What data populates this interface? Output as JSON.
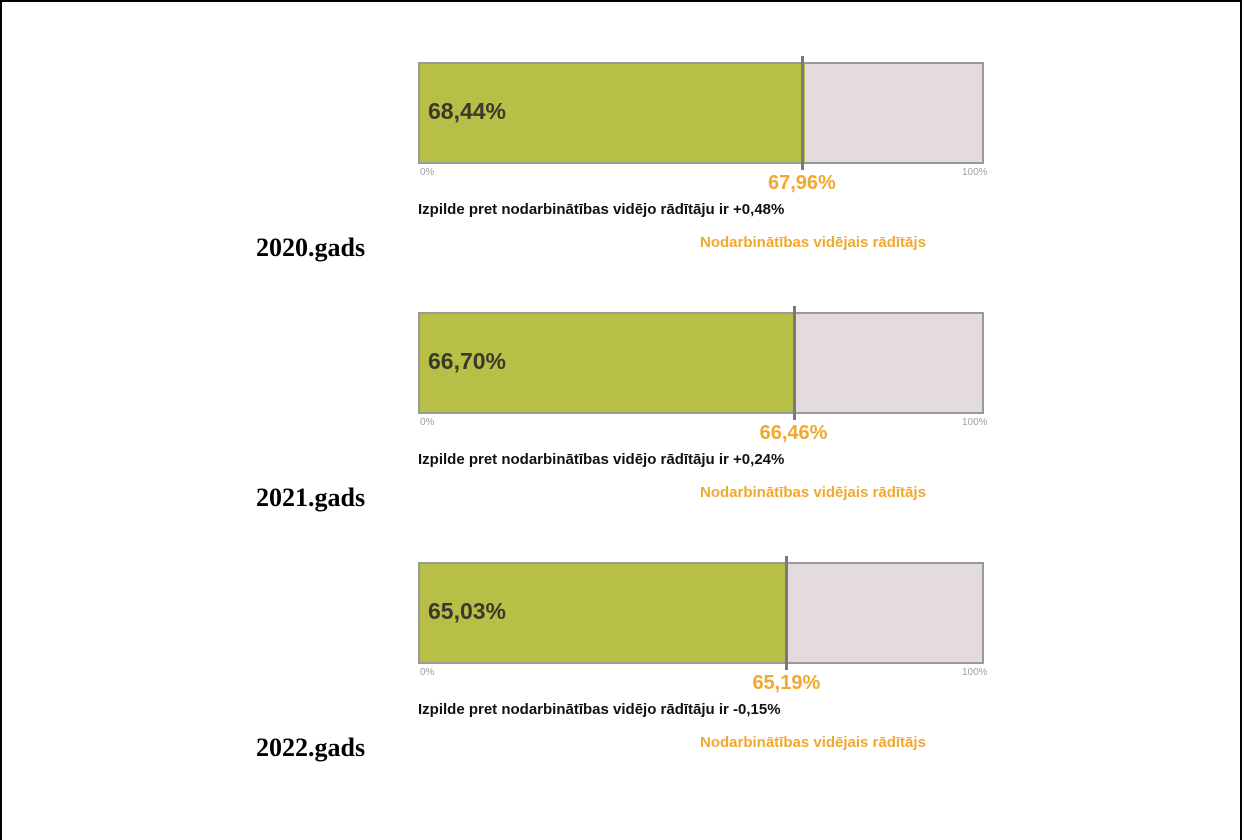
{
  "chart_data": {
    "type": "bullet",
    "axis_min_label": "0%",
    "axis_max_label": "100%",
    "colors": {
      "actual": "#b7bf47",
      "remainder": "#e4dcdc",
      "target": "#f0a830",
      "marker": "#7a7a7a"
    },
    "panels": [
      {
        "year": "2020.gads",
        "actual": 68.44,
        "actual_label": "68,44%",
        "target": 67.96,
        "target_label": "67,96%",
        "statement": "Izpilde pret nodarbinātības vidējo rādītāju ir +0,48%",
        "legend": "Nodarbinātības vidējais rādītājs"
      },
      {
        "year": "2021.gads",
        "actual": 66.7,
        "actual_label": "66,70%",
        "target": 66.46,
        "target_label": "66,46%",
        "statement": "Izpilde pret nodarbinātības vidējo rādītāju ir +0,24%",
        "legend": "Nodarbinātības vidējais rādītājs"
      },
      {
        "year": "2022.gads",
        "actual": 65.03,
        "actual_label": "65,03%",
        "target": 65.19,
        "target_label": "65,19%",
        "statement": "Izpilde pret nodarbinātības vidējo rādītāju ir -0,15%",
        "legend": "Nodarbinātības vidējais rādītājs"
      }
    ]
  }
}
